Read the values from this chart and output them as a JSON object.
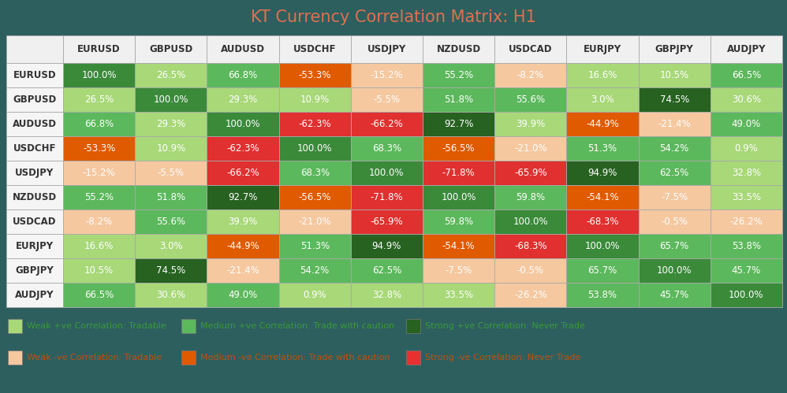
{
  "title": "KT Currency Correlation Matrix: H1",
  "title_color": "#e07050",
  "background_color": "#2d5f5f",
  "row_labels": [
    "EURUSD",
    "GBPUSD",
    "AUDUSD",
    "USDCHF",
    "USDJPY",
    "NZDUSD",
    "USDCAD",
    "EURJPY",
    "GBPJPY",
    "AUDJPY"
  ],
  "col_labels": [
    "EURUSD",
    "GBPUSD",
    "AUDUSD",
    "USDCHF",
    "USDJPY",
    "NZDUSD",
    "USDCAD",
    "EURJPY",
    "GBPJPY",
    "AUDJPY"
  ],
  "values": [
    [
      100.0,
      26.5,
      66.8,
      -53.3,
      -15.2,
      55.2,
      -8.2,
      16.6,
      10.5,
      66.5
    ],
    [
      26.5,
      100.0,
      29.3,
      10.9,
      -5.5,
      51.8,
      55.6,
      3.0,
      74.5,
      30.6
    ],
    [
      66.8,
      29.3,
      100.0,
      -62.3,
      -66.2,
      92.7,
      39.9,
      -44.9,
      -21.4,
      49.0
    ],
    [
      -53.3,
      10.9,
      -62.3,
      100.0,
      68.3,
      -56.5,
      -21.0,
      51.3,
      54.2,
      0.9
    ],
    [
      -15.2,
      -5.5,
      -66.2,
      68.3,
      100.0,
      -71.8,
      -65.9,
      94.9,
      62.5,
      32.8
    ],
    [
      55.2,
      51.8,
      92.7,
      -56.5,
      -71.8,
      100.0,
      59.8,
      -54.1,
      -7.5,
      33.5
    ],
    [
      -8.2,
      55.6,
      39.9,
      -21.0,
      -65.9,
      59.8,
      100.0,
      -68.3,
      -0.5,
      -26.2
    ],
    [
      16.6,
      3.0,
      -44.9,
      51.3,
      94.9,
      -54.1,
      -68.3,
      100.0,
      65.7,
      53.8
    ],
    [
      10.5,
      74.5,
      -21.4,
      54.2,
      62.5,
      -7.5,
      -0.5,
      65.7,
      100.0,
      45.7
    ],
    [
      66.5,
      30.6,
      49.0,
      0.9,
      32.8,
      33.5,
      -26.2,
      53.8,
      45.7,
      100.0
    ]
  ],
  "header_cell_bg": "#f0f0f0",
  "row_label_bg": "#f5f5f5",
  "cell_border_color": "#aaaaaa",
  "header_text_color": "#333333",
  "row_label_text_color": "#333333",
  "legend_items_pos": [
    {
      "label": "Weak +ve Correlation: Tradable",
      "color": "#a8d878"
    },
    {
      "label": "Medium +ve Correlation: Trade with caution",
      "color": "#5cb85c"
    },
    {
      "label": "Strong +ve Correlation: Never Trade",
      "color": "#276221"
    }
  ],
  "legend_items_neg": [
    {
      "label": "Weak -ve Correlation: Tradable",
      "color": "#f5c8a0"
    },
    {
      "label": "Medium -ve Correlation: Trade with caution",
      "color": "#e05a00"
    },
    {
      "label": "Strong -ve Correlation: Never Trade",
      "color": "#e83030"
    }
  ],
  "legend_text_color_pos": "#3a9a3a",
  "legend_text_color_neg": "#c05010"
}
